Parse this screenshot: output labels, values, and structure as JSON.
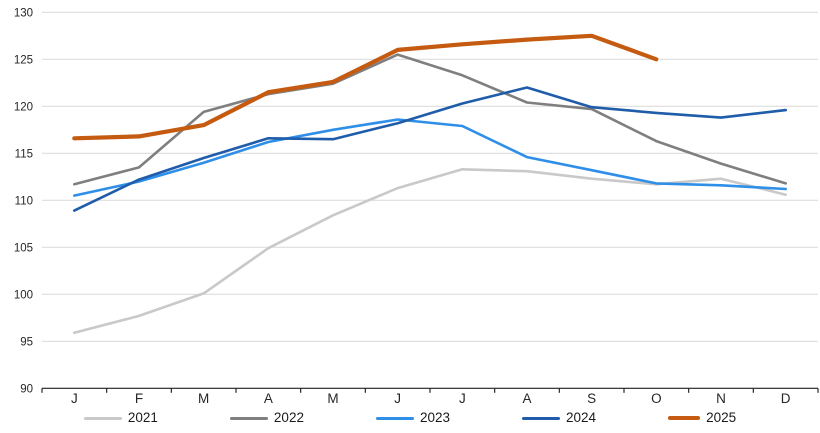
{
  "chart_data": {
    "type": "line",
    "categories": [
      "J",
      "F",
      "M",
      "A",
      "M",
      "J",
      "J",
      "A",
      "S",
      "O",
      "N",
      "D"
    ],
    "series": [
      {
        "name": "2021",
        "color": "#c9c9c9",
        "stroke_width": 2.6,
        "values": [
          95.9,
          97.7,
          100.1,
          104.9,
          108.4,
          111.3,
          113.3,
          113.1,
          112.3,
          111.7,
          112.3,
          110.6
        ]
      },
      {
        "name": "2022",
        "color": "#7f7f7f",
        "stroke_width": 2.6,
        "values": [
          111.7,
          113.5,
          119.4,
          121.3,
          122.4,
          125.5,
          123.3,
          120.4,
          119.7,
          116.3,
          113.9,
          111.8
        ]
      },
      {
        "name": "2023",
        "color": "#2f8fe8",
        "stroke_width": 2.6,
        "values": [
          110.5,
          112.0,
          114.0,
          116.2,
          117.5,
          118.6,
          117.9,
          114.6,
          113.2,
          111.8,
          111.6,
          111.2
        ]
      },
      {
        "name": "2024",
        "color": "#1f5ca9",
        "stroke_width": 2.6,
        "values": [
          108.9,
          112.2,
          114.5,
          116.6,
          116.5,
          118.2,
          120.3,
          122.0,
          119.9,
          119.3,
          118.8,
          119.6
        ]
      },
      {
        "name": "2025",
        "color": "#c55a11",
        "stroke_width": 4.2,
        "values": [
          116.6,
          116.8,
          118.0,
          121.5,
          122.6,
          126.0,
          126.6,
          127.1,
          127.5,
          125.0,
          null,
          null
        ]
      }
    ],
    "yticks": [
      90,
      95,
      100,
      105,
      110,
      115,
      120,
      125,
      130
    ],
    "ylim": [
      90,
      130
    ],
    "title": "",
    "xlabel": "",
    "ylabel": "",
    "grid": "horizontal",
    "gridline_color": "#d9d9d9",
    "axis_line_color": "#262626",
    "text_color": "#262626",
    "legend_position": "bottom",
    "legend_entries": [
      "2021",
      "2022",
      "2023",
      "2024",
      "2025"
    ]
  }
}
